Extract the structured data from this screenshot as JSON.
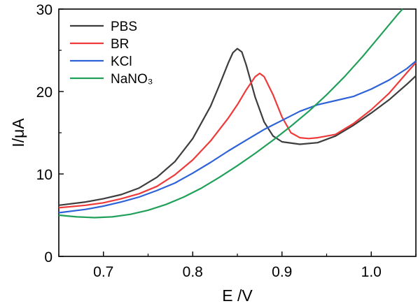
{
  "chart_data": {
    "type": "line",
    "xlabel": "E /V",
    "ylabel": "I/μA",
    "xlim": [
      0.65,
      1.05
    ],
    "ylim": [
      0,
      30
    ],
    "x_ticks": [
      0.7,
      0.8,
      0.9,
      1.0
    ],
    "x_tick_labels": [
      "0.7",
      "0.8",
      "0.9",
      "1.0"
    ],
    "y_ticks": [
      0,
      10,
      20,
      30
    ],
    "y_tick_labels": [
      "0",
      "10",
      "20",
      "30"
    ],
    "grid": false,
    "legend_position": "top-left",
    "series": [
      {
        "name": "PBS",
        "legend_label": "PBS",
        "color": "#3d3d3d",
        "points": [
          [
            0.65,
            6.2
          ],
          [
            0.68,
            6.6
          ],
          [
            0.7,
            7.0
          ],
          [
            0.72,
            7.5
          ],
          [
            0.74,
            8.3
          ],
          [
            0.76,
            9.6
          ],
          [
            0.78,
            11.5
          ],
          [
            0.8,
            14.3
          ],
          [
            0.82,
            18.2
          ],
          [
            0.83,
            20.8
          ],
          [
            0.84,
            23.5
          ],
          [
            0.845,
            24.7
          ],
          [
            0.85,
            25.2
          ],
          [
            0.855,
            24.8
          ],
          [
            0.86,
            23.2
          ],
          [
            0.87,
            19.3
          ],
          [
            0.88,
            16.3
          ],
          [
            0.89,
            14.6
          ],
          [
            0.9,
            13.9
          ],
          [
            0.92,
            13.6
          ],
          [
            0.94,
            13.8
          ],
          [
            0.96,
            14.6
          ],
          [
            0.98,
            15.9
          ],
          [
            1.0,
            17.4
          ],
          [
            1.02,
            19.0
          ],
          [
            1.04,
            20.9
          ],
          [
            1.05,
            21.9
          ]
        ]
      },
      {
        "name": "BR",
        "legend_label": "BR",
        "color": "#ee3a3a",
        "points": [
          [
            0.65,
            5.9
          ],
          [
            0.68,
            6.2
          ],
          [
            0.7,
            6.5
          ],
          [
            0.72,
            7.0
          ],
          [
            0.74,
            7.6
          ],
          [
            0.76,
            8.5
          ],
          [
            0.78,
            9.9
          ],
          [
            0.8,
            11.7
          ],
          [
            0.82,
            14.0
          ],
          [
            0.84,
            16.8
          ],
          [
            0.85,
            18.4
          ],
          [
            0.86,
            20.2
          ],
          [
            0.87,
            21.8
          ],
          [
            0.875,
            22.2
          ],
          [
            0.88,
            21.8
          ],
          [
            0.89,
            19.6
          ],
          [
            0.9,
            16.9
          ],
          [
            0.91,
            15.0
          ],
          [
            0.92,
            14.4
          ],
          [
            0.93,
            14.3
          ],
          [
            0.94,
            14.4
          ],
          [
            0.96,
            14.8
          ],
          [
            0.98,
            16.1
          ],
          [
            1.0,
            17.8
          ],
          [
            1.02,
            19.8
          ],
          [
            1.04,
            22.3
          ],
          [
            1.05,
            23.5
          ]
        ]
      },
      {
        "name": "KCl",
        "legend_label": "KCl",
        "color": "#2e62d8",
        "points": [
          [
            0.65,
            5.3
          ],
          [
            0.68,
            5.7
          ],
          [
            0.7,
            6.1
          ],
          [
            0.72,
            6.6
          ],
          [
            0.74,
            7.2
          ],
          [
            0.76,
            8.0
          ],
          [
            0.78,
            8.9
          ],
          [
            0.8,
            10.1
          ],
          [
            0.82,
            11.4
          ],
          [
            0.84,
            12.8
          ],
          [
            0.86,
            14.1
          ],
          [
            0.88,
            15.4
          ],
          [
            0.9,
            16.5
          ],
          [
            0.92,
            17.6
          ],
          [
            0.94,
            18.4
          ],
          [
            0.96,
            18.9
          ],
          [
            0.98,
            19.4
          ],
          [
            1.0,
            20.3
          ],
          [
            1.02,
            21.4
          ],
          [
            1.04,
            22.8
          ],
          [
            1.05,
            23.7
          ]
        ]
      },
      {
        "name": "NaNO₃",
        "legend_label": "NaNO₃",
        "color": "#21a05a",
        "points": [
          [
            0.65,
            5.0
          ],
          [
            0.67,
            4.8
          ],
          [
            0.69,
            4.7
          ],
          [
            0.71,
            4.8
          ],
          [
            0.73,
            5.1
          ],
          [
            0.75,
            5.6
          ],
          [
            0.77,
            6.3
          ],
          [
            0.79,
            7.2
          ],
          [
            0.81,
            8.3
          ],
          [
            0.83,
            9.6
          ],
          [
            0.85,
            11.0
          ],
          [
            0.87,
            12.5
          ],
          [
            0.89,
            14.1
          ],
          [
            0.91,
            15.8
          ],
          [
            0.93,
            17.6
          ],
          [
            0.95,
            19.6
          ],
          [
            0.97,
            21.8
          ],
          [
            0.99,
            24.2
          ],
          [
            1.01,
            26.8
          ],
          [
            1.03,
            29.4
          ],
          [
            1.035,
            30.0
          ]
        ]
      }
    ]
  }
}
